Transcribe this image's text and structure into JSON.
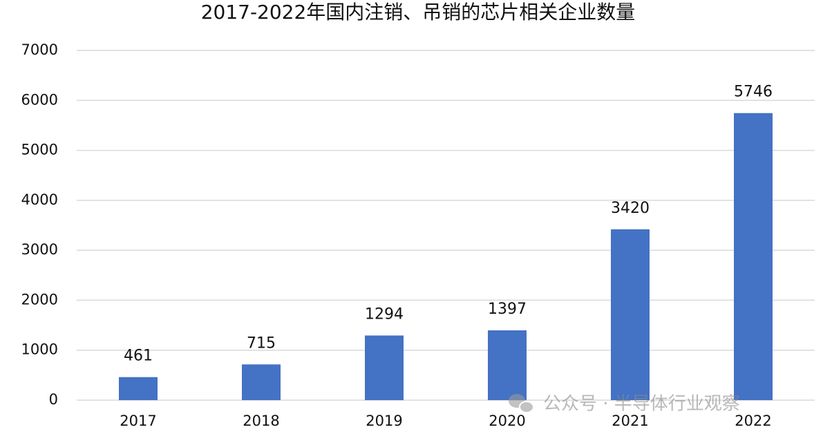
{
  "chart_data": {
    "type": "bar",
    "title": "2017-2022年国内注销、吊销的芯片相关企业数量",
    "categories": [
      "2017",
      "2018",
      "2019",
      "2020",
      "2021",
      "2022"
    ],
    "values": [
      461,
      715,
      1294,
      1397,
      3420,
      5746
    ],
    "color": "#4472c4",
    "ylim": [
      0,
      7000
    ],
    "yticks": [
      0,
      1000,
      2000,
      3000,
      4000,
      5000,
      6000,
      7000
    ],
    "grid": true,
    "watermark": "公众号 · 半导体行业观察"
  }
}
